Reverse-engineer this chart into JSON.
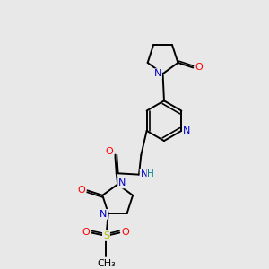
{
  "background_color": "#e8e8e8",
  "bond_color": "#000000",
  "atom_colors": {
    "N": "#0000cc",
    "O": "#ff0000",
    "S": "#bbbb00",
    "H": "#008080",
    "C": "#000000"
  },
  "figsize": [
    3.0,
    3.0
  ],
  "dpi": 100
}
